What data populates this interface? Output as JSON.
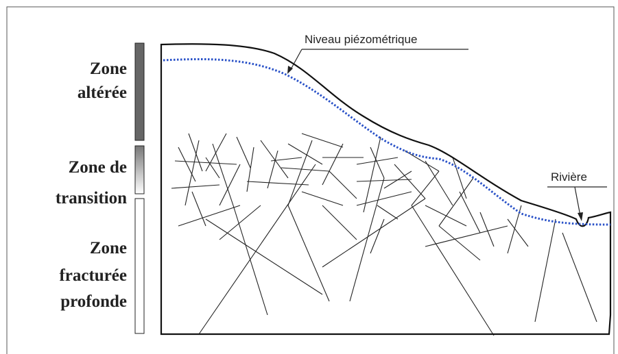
{
  "zones": [
    {
      "lines": [
        "Zone",
        "altérée"
      ]
    },
    {
      "lines": [
        "Zone de",
        "transition"
      ]
    },
    {
      "lines": [
        "Zone",
        "fracturée",
        "profonde"
      ]
    }
  ],
  "labels": {
    "water_table": "Niveau piézométrique",
    "river": "Rivière"
  }
}
